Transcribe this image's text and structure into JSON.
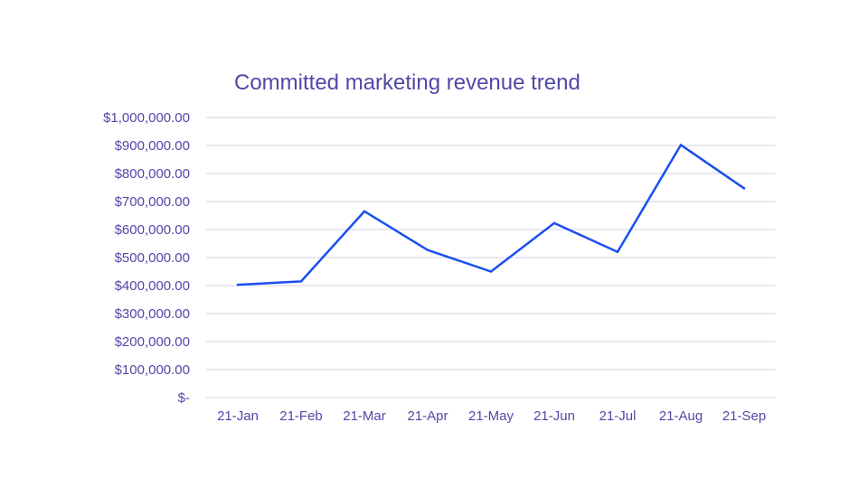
{
  "chart_data": {
    "type": "line",
    "title": "Committed marketing revenue trend",
    "xlabel": "",
    "ylabel": "",
    "categories": [
      "21-Jan",
      "21-Feb",
      "21-Mar",
      "21-Apr",
      "21-May",
      "21-Jun",
      "21-Jul",
      "21-Aug",
      "21-Sep"
    ],
    "series": [
      {
        "values": [
          403000,
          415000,
          665000,
          527000,
          450000,
          623000,
          520000,
          902000,
          747000
        ]
      }
    ],
    "ylim": [
      0,
      1000000
    ],
    "y_ticks": [
      0,
      100000,
      200000,
      300000,
      400000,
      500000,
      600000,
      700000,
      800000,
      900000,
      1000000
    ],
    "y_tick_labels": [
      "$-",
      "$100,000.00",
      "$200,000.00",
      "$300,000.00",
      "$400,000.00",
      "$500,000.00",
      "$600,000.00",
      "$700,000.00",
      "$800,000.00",
      "$900,000.00",
      "$1,000,000.00"
    ],
    "grid": true,
    "legend": "none",
    "colors": {
      "line": "#1a4ff0",
      "text": "#5148a6",
      "grid": "#d3d3e6"
    }
  }
}
